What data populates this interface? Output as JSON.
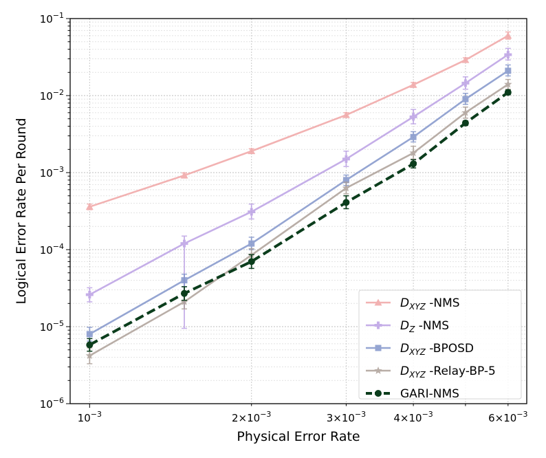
{
  "chart_data": {
    "type": "line",
    "title": "",
    "xlabel": "Physical Error Rate",
    "ylabel": "Logical Error Rate Per Round",
    "xscale": "log",
    "yscale": "log",
    "xlim": [
      0.00092,
      0.0065
    ],
    "ylim": [
      1e-06,
      0.1
    ],
    "grid": true,
    "legend_position": "lower-right",
    "x": [
      0.001,
      0.0015,
      0.002,
      0.003,
      0.004,
      0.005,
      0.006
    ],
    "xticks": [
      {
        "value": 0.001,
        "base": "10",
        "exp": "−3"
      },
      {
        "value": 0.002,
        "base": "2×10",
        "exp": "−3"
      },
      {
        "value": 0.003,
        "base": "3×10",
        "exp": "−3"
      },
      {
        "value": 0.004,
        "base": "4×10",
        "exp": "−3"
      },
      {
        "value": 0.006,
        "base": "6×10",
        "exp": "−3"
      }
    ],
    "yticks": [
      {
        "value": 1e-06,
        "base": "10",
        "exp": "−6"
      },
      {
        "value": 1e-05,
        "base": "10",
        "exp": "−5"
      },
      {
        "value": 0.0001,
        "base": "10",
        "exp": "−4"
      },
      {
        "value": 0.001,
        "base": "10",
        "exp": "−3"
      },
      {
        "value": 0.01,
        "base": "10",
        "exp": "−2"
      },
      {
        "value": 0.1,
        "base": "10",
        "exp": "−1"
      }
    ],
    "series": [
      {
        "name": "D_XYZ -NMS",
        "label_main": "D",
        "label_sub": "XYZ",
        "label_rest": " -NMS",
        "color": "#f0a0a0",
        "marker": "triangle",
        "dashed": false,
        "values": [
          0.00036,
          0.00092,
          0.0019,
          0.0056,
          0.0138,
          0.029,
          0.06
        ],
        "err": [
          [
            0.00033,
            0.00039
          ],
          [
            0.00085,
            0.00099
          ],
          [
            0.00177,
            0.00204
          ],
          [
            0.0052,
            0.006
          ],
          [
            0.0128,
            0.0148
          ],
          [
            0.027,
            0.031
          ],
          [
            0.054,
            0.067
          ]
        ]
      },
      {
        "name": "D_Z -NMS",
        "label_main": "D",
        "label_sub": "Z",
        "label_rest": " -NMS",
        "color": "#b79be3",
        "marker": "plus",
        "dashed": false,
        "values": [
          2.6e-05,
          0.00012,
          0.00031,
          0.0015,
          0.0053,
          0.0145,
          0.034
        ],
        "err": [
          [
            2.1e-05,
            3.2e-05
          ],
          [
            9.5e-06,
            0.00015
          ],
          [
            0.00025,
            0.00039
          ],
          [
            0.0012,
            0.0019
          ],
          [
            0.0043,
            0.0066
          ],
          [
            0.0121,
            0.0175
          ],
          [
            0.029,
            0.041
          ]
        ]
      },
      {
        "name": "D_XYZ -BPOSD",
        "label_main": "D",
        "label_sub": "XYZ",
        "label_rest": " -BPOSD",
        "color": "#7b8fc8",
        "marker": "square",
        "dashed": false,
        "values": [
          8e-06,
          4e-05,
          0.00012,
          0.0008,
          0.0029,
          0.009,
          0.021
        ],
        "err": [
          [
            6.5e-06,
            9.8e-06
          ],
          [
            3.3e-05,
            4.8e-05
          ],
          [
            0.0001,
            0.000145
          ],
          [
            0.00068,
            0.00093
          ],
          [
            0.0025,
            0.0034
          ],
          [
            0.0077,
            0.0107
          ],
          [
            0.018,
            0.025
          ]
        ]
      },
      {
        "name": "D_XYZ -Relay-BP-5",
        "label_main": "D",
        "label_sub": "XYZ",
        "label_rest": " -Relay-BP-5",
        "color": "#a89a92",
        "marker": "star",
        "dashed": false,
        "values": [
          4.2e-06,
          2.1e-05,
          8.5e-05,
          0.00063,
          0.0018,
          0.006,
          0.014
        ],
        "err": [
          [
            3.3e-06,
            5.3e-06
          ],
          [
            1.7e-05,
            2.6e-05
          ],
          [
            7e-05,
            0.000103
          ],
          [
            0.00053,
            0.00075
          ],
          [
            0.0015,
            0.0022
          ],
          [
            0.0051,
            0.0071
          ],
          [
            0.0121,
            0.0162
          ]
        ]
      },
      {
        "name": "GARI-NMS",
        "label_main": "GARI-NMS",
        "label_sub": "",
        "label_rest": "",
        "color": "#0b3d1c",
        "marker": "circle",
        "dashed": true,
        "values": [
          5.8e-06,
          2.7e-05,
          7e-05,
          0.00041,
          0.0013,
          0.0044,
          0.011
        ],
        "err": [
          [
            4.8e-06,
            7e-06
          ],
          [
            2.2e-05,
            3.3e-05
          ],
          [
            5.7e-05,
            8.6e-05
          ],
          [
            0.00034,
            0.0005
          ],
          [
            0.00115,
            0.00147
          ],
          [
            0.0041,
            0.0047
          ],
          [
            0.0103,
            0.0118
          ]
        ]
      }
    ]
  }
}
